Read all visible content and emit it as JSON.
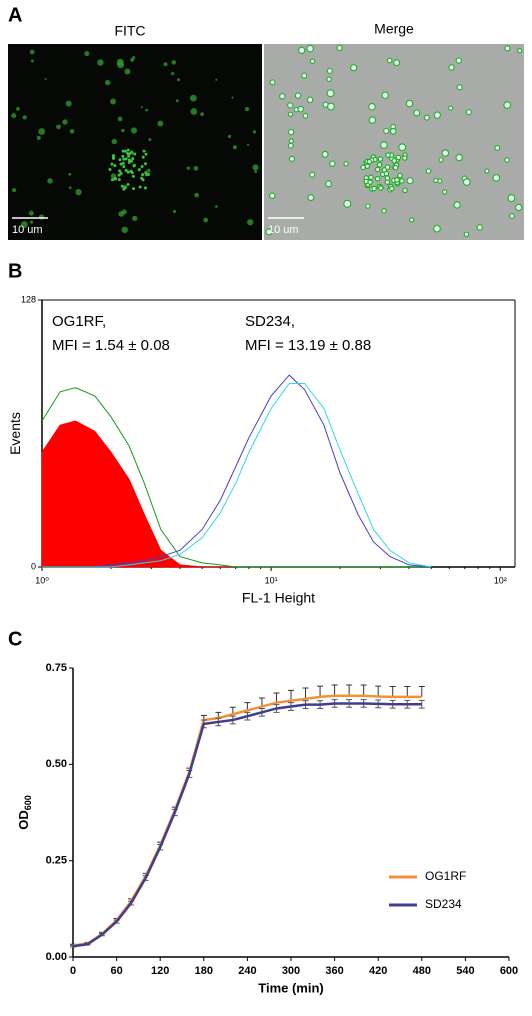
{
  "panel_labels": [
    "A",
    "B",
    "C"
  ],
  "images": {
    "titles": [
      "FITC",
      "Merge"
    ],
    "scale_bars": [
      "10 um",
      "10 um"
    ]
  },
  "chart_data": [
    {
      "type": "line",
      "xscale": "log",
      "frame": "box",
      "xlabel": "FL-1 Height",
      "ylabel": "Events",
      "annotations": [
        "OG1RF,",
        "MFI = 1.54 ± 0.08",
        "SD234,",
        "MFI = 13.19 ± 0.88"
      ],
      "x": [
        1,
        1.2,
        1.4,
        1.7,
        2,
        2.4,
        2.8,
        3.3,
        4,
        5,
        6,
        7,
        8,
        10,
        12,
        14,
        17,
        20,
        24,
        28,
        33,
        40,
        50
      ],
      "series": [
        {
          "color": "#ff0000",
          "fill": true,
          "values": [
            55,
            68,
            70,
            65,
            55,
            42,
            25,
            8,
            1,
            0,
            0,
            0,
            0,
            0,
            0,
            0,
            0,
            0,
            0,
            0,
            0,
            0,
            0
          ]
        },
        {
          "color": "#1a9a1a",
          "fill": false,
          "values": [
            70,
            84,
            86,
            82,
            72,
            58,
            40,
            18,
            5,
            2,
            1,
            0,
            0,
            0,
            0,
            0,
            0,
            0,
            0,
            0,
            0,
            0,
            0
          ]
        },
        {
          "color": "#4040d0",
          "fill": false,
          "values": [
            0,
            0,
            0,
            0,
            1,
            2,
            3,
            5,
            8,
            18,
            32,
            48,
            62,
            82,
            92,
            85,
            68,
            45,
            25,
            12,
            5,
            1,
            0
          ]
        },
        {
          "color": "#30d8e8",
          "fill": false,
          "values": [
            0,
            0,
            0,
            0,
            0,
            1,
            2,
            3,
            6,
            14,
            26,
            40,
            55,
            76,
            88,
            88,
            76,
            56,
            35,
            18,
            8,
            2,
            0
          ]
        }
      ],
      "xlim": [
        1,
        116
      ],
      "xticks": [
        {
          "value": 1,
          "label": "10⁰"
        },
        {
          "value": 10,
          "label": "10¹"
        },
        {
          "value": 100,
          "label": "10²"
        }
      ],
      "ylim": [
        0,
        128
      ],
      "yticks": [
        0,
        128
      ]
    },
    {
      "type": "line",
      "xscale": "linear",
      "frame": "axes",
      "xlabel": "Time (min)",
      "ylabel": "OD",
      "ylabel_sub": "600",
      "legend": "lower right",
      "x": [
        0,
        20,
        40,
        60,
        80,
        100,
        120,
        140,
        160,
        180,
        200,
        220,
        240,
        260,
        280,
        300,
        320,
        340,
        360,
        380,
        400,
        420,
        440,
        460,
        480
      ],
      "series": [
        {
          "name": "OG1RF",
          "color": "#f0923a",
          "fill": false,
          "values": [
            0.03,
            0.035,
            0.06,
            0.095,
            0.145,
            0.21,
            0.29,
            0.38,
            0.48,
            0.615,
            0.62,
            0.63,
            0.64,
            0.65,
            0.66,
            0.665,
            0.67,
            0.675,
            0.678,
            0.678,
            0.678,
            0.676,
            0.675,
            0.675,
            0.675
          ],
          "errors": [
            0.003,
            0.003,
            0.004,
            0.005,
            0.006,
            0.007,
            0.008,
            0.009,
            0.01,
            0.012,
            0.015,
            0.018,
            0.02,
            0.022,
            0.025,
            0.027,
            0.028,
            0.028,
            0.028,
            0.028,
            0.028,
            0.027,
            0.027,
            0.027,
            0.027
          ]
        },
        {
          "name": "SD234",
          "color": "#3f3f8f",
          "fill": false,
          "values": [
            0.028,
            0.033,
            0.058,
            0.092,
            0.14,
            0.205,
            0.285,
            0.375,
            0.475,
            0.605,
            0.61,
            0.615,
            0.625,
            0.635,
            0.645,
            0.65,
            0.655,
            0.655,
            0.658,
            0.658,
            0.658,
            0.657,
            0.656,
            0.656,
            0.656
          ],
          "errors": [
            0.002,
            0.002,
            0.003,
            0.004,
            0.005,
            0.006,
            0.007,
            0.008,
            0.009,
            0.01,
            0.01,
            0.01,
            0.01,
            0.01,
            0.01,
            0.01,
            0.01,
            0.01,
            0.01,
            0.01,
            0.01,
            0.01,
            0.01,
            0.01,
            0.01
          ]
        }
      ],
      "xlim": [
        0,
        600
      ],
      "xticks": [
        0,
        60,
        120,
        180,
        240,
        300,
        360,
        420,
        480,
        540,
        600
      ],
      "ylim": [
        0,
        0.75
      ],
      "yticks": [
        {
          "value": 0,
          "label": "0.00"
        },
        {
          "value": 0.25,
          "label": "0.25"
        },
        {
          "value": 0.5,
          "label": "0.50"
        },
        {
          "value": 0.75,
          "label": "0.75"
        }
      ]
    }
  ]
}
